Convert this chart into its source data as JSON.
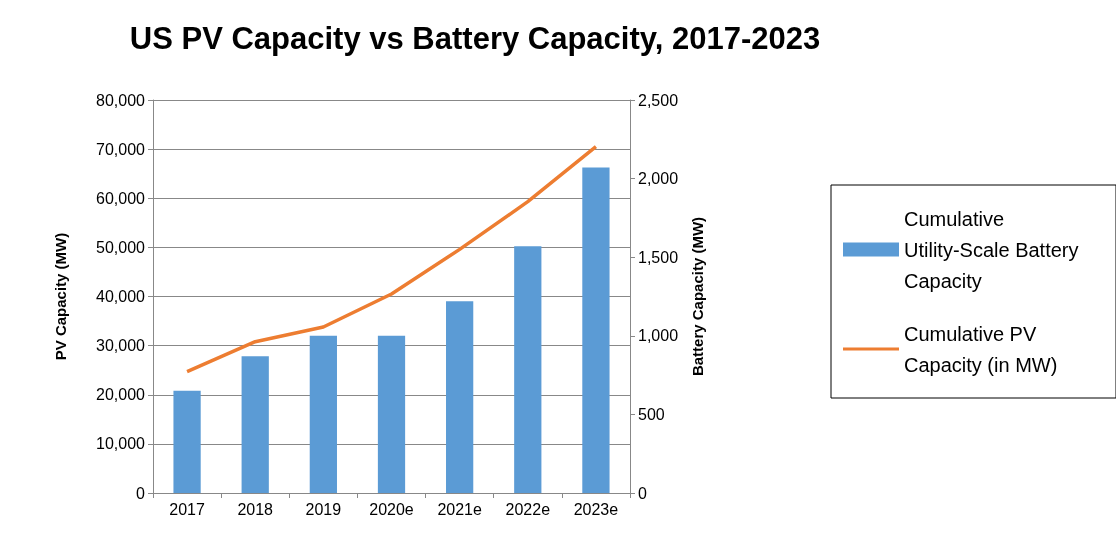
{
  "chart_data": {
    "type": "bar",
    "title": "US PV Capacity vs Battery Capacity, 2017-2023",
    "ylabel": "PV Capacity (MW)",
    "y2label": "Battery Capacity (MW)",
    "categories": [
      "2017",
      "2018",
      "2019",
      "2020e",
      "2021e",
      "2022e",
      "2023e"
    ],
    "series": [
      {
        "name": "Cumulative Utility-Scale Battery Capacity",
        "axis": "y2",
        "color": "#5b9bd5",
        "values": [
          650,
          870,
          1000,
          1000,
          1220,
          1570,
          2070
        ]
      },
      {
        "name": "Cumulative PV Capacity (in MW)",
        "type": "line",
        "color": "#ed7d31",
        "marker": "none",
        "values": [
          24700,
          30800,
          33800,
          40500,
          49600,
          59300,
          70500
        ]
      }
    ],
    "ylim": [
      0,
      80000
    ],
    "yticks": [
      0,
      {
        "value": 10000,
        "label": "10,000"
      },
      {
        "value": 20000,
        "label": "20,000"
      },
      {
        "value": 30000,
        "label": "30,000"
      },
      {
        "value": 40000,
        "label": "40,000"
      },
      {
        "value": 50000,
        "label": "50,000"
      },
      {
        "value": 60000,
        "label": "60,000"
      },
      {
        "value": 70000,
        "label": "70,000"
      },
      {
        "value": 80000,
        "label": "80,000"
      }
    ],
    "y2lim": [
      0,
      2500
    ],
    "y2ticks": [
      0,
      500,
      {
        "value": 1000,
        "label": "1,000"
      },
      {
        "value": 1500,
        "label": "1,500"
      },
      {
        "value": 2000,
        "label": "2,000"
      },
      {
        "value": 2500,
        "label": "2,500"
      }
    ],
    "grid": "y",
    "legend": "right"
  }
}
